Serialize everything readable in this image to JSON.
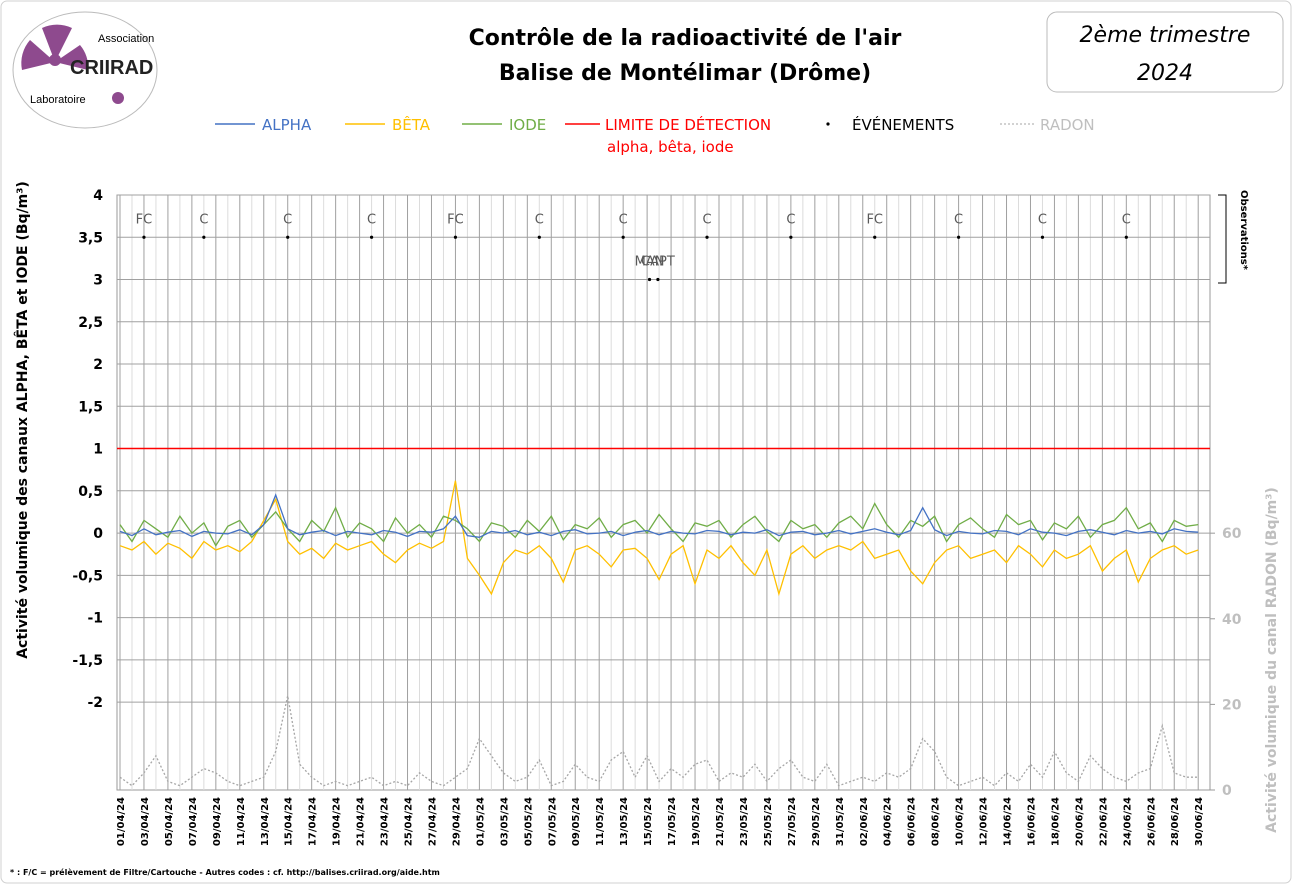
{
  "header": {
    "org_top": "Association",
    "org_name": "CRIIRAD",
    "org_bottom": "Laboratoire",
    "period_line1": "2ème trimestre",
    "period_line2": "2024"
  },
  "chart_data": {
    "type": "line",
    "title": "Contrôle de la radioactivité de l'air",
    "subtitle": "Balise de Montélimar (Drôme)",
    "ylabel": "Activité volumique des canaux ALPHA, BÊTA et IODE (Bq/m³)",
    "y2label": "Activité volumique du canal RADON (Bq/m³)",
    "observations_label": "Observations*",
    "footnote": "* : F/C = prélèvement de Filtre/Cartouche  - Autres codes : cf. http://balises.criirad.org/aide.htm",
    "categories": [
      "01/04/24",
      null,
      "03/04/24",
      null,
      "05/04/24",
      null,
      "07/04/24",
      null,
      "09/04/24",
      null,
      "11/04/24",
      null,
      "13/04/24",
      null,
      "15/04/24",
      null,
      "17/04/24",
      null,
      "19/04/24",
      null,
      "21/04/24",
      null,
      "23/04/24",
      null,
      "25/04/24",
      null,
      "27/04/24",
      null,
      "29/04/24",
      null,
      "01/05/24",
      null,
      "03/05/24",
      null,
      "05/05/24",
      null,
      "07/05/24",
      null,
      "09/05/24",
      null,
      "11/05/24",
      null,
      "13/05/24",
      null,
      "15/05/24",
      null,
      "17/05/24",
      null,
      "19/05/24",
      null,
      "21/05/24",
      null,
      "23/05/24",
      null,
      "25/05/24",
      null,
      "27/05/24",
      null,
      "29/05/24",
      null,
      "31/05/24",
      null,
      "02/06/24",
      null,
      "04/06/24",
      null,
      "06/06/24",
      null,
      "08/06/24",
      null,
      "10/06/24",
      null,
      "12/06/24",
      null,
      "14/06/24",
      null,
      "16/06/24",
      null,
      "18/06/24",
      null,
      "20/06/24",
      null,
      "22/06/24",
      null,
      "24/06/24",
      null,
      "26/06/24",
      null,
      "28/06/24",
      null,
      "30/06/24"
    ],
    "series": [
      {
        "name": "ALPHA",
        "color": "#4472c4",
        "values": [
          0.02,
          -0.03,
          0.05,
          -0.02,
          0.01,
          0.03,
          -0.04,
          0.02,
          0,
          -0.01,
          0.04,
          -0.02,
          0.1,
          0.45,
          0.05,
          -0.02,
          0.01,
          0.03,
          -0.03,
          0.02,
          0,
          -0.02,
          0.03,
          0.01,
          -0.04,
          0.02,
          0.01,
          0.05,
          0.2,
          -0.03,
          -0.05,
          0.02,
          0,
          0.03,
          -0.02,
          0.01,
          -0.03,
          0.02,
          0.04,
          -0.01,
          0,
          0.02,
          -0.03,
          0.01,
          0.03,
          -0.02,
          0.02,
          0,
          -0.01,
          0.03,
          0.02,
          -0.02,
          0.01,
          0,
          0.04,
          -0.03,
          0.01,
          0.02,
          -0.02,
          0,
          0.03,
          -0.01,
          0.02,
          0.05,
          0.01,
          -0.02,
          0.03,
          0.3,
          0.04,
          -0.03,
          0.02,
          0,
          -0.01,
          0.03,
          0.02,
          -0.02,
          0.05,
          0.01,
          0,
          -0.03,
          0.02,
          0.04,
          0.01,
          -0.02,
          0.03,
          0,
          0.02,
          -0.01,
          0.05,
          0.02,
          0.01
        ]
      },
      {
        "name": "BÊTA",
        "color": "#ffc000",
        "values": [
          -0.15,
          -0.2,
          -0.1,
          -0.25,
          -0.12,
          -0.18,
          -0.3,
          -0.1,
          -0.2,
          -0.15,
          -0.22,
          -0.1,
          0.15,
          0.4,
          -0.1,
          -0.25,
          -0.18,
          -0.3,
          -0.12,
          -0.2,
          -0.15,
          -0.1,
          -0.25,
          -0.35,
          -0.2,
          -0.12,
          -0.18,
          -0.1,
          0.62,
          -0.3,
          -0.5,
          -0.72,
          -0.35,
          -0.2,
          -0.25,
          -0.15,
          -0.3,
          -0.58,
          -0.2,
          -0.15,
          -0.25,
          -0.4,
          -0.2,
          -0.18,
          -0.3,
          -0.55,
          -0.25,
          -0.15,
          -0.6,
          -0.2,
          -0.3,
          -0.15,
          -0.35,
          -0.5,
          -0.2,
          -0.72,
          -0.25,
          -0.15,
          -0.3,
          -0.2,
          -0.15,
          -0.2,
          -0.1,
          -0.3,
          -0.25,
          -0.2,
          -0.45,
          -0.6,
          -0.35,
          -0.2,
          -0.15,
          -0.3,
          -0.25,
          -0.2,
          -0.35,
          -0.15,
          -0.25,
          -0.4,
          -0.2,
          -0.3,
          -0.25,
          -0.15,
          -0.45,
          -0.3,
          -0.2,
          -0.58,
          -0.3,
          -0.2,
          -0.15,
          -0.25,
          -0.2
        ]
      },
      {
        "name": "IODE",
        "color": "#70ad47",
        "values": [
          0.1,
          -0.1,
          0.15,
          0.05,
          -0.05,
          0.2,
          0,
          0.12,
          -0.15,
          0.08,
          0.15,
          -0.05,
          0.1,
          0.25,
          0.05,
          -0.1,
          0.15,
          0.02,
          0.3,
          -0.05,
          0.12,
          0.05,
          -0.1,
          0.18,
          0,
          0.1,
          -0.05,
          0.2,
          0.15,
          0.05,
          -0.1,
          0.12,
          0.08,
          -0.05,
          0.15,
          0.02,
          0.2,
          -0.08,
          0.1,
          0.05,
          0.18,
          -0.05,
          0.1,
          0.15,
          0,
          0.22,
          0.05,
          -0.1,
          0.12,
          0.08,
          0.15,
          -0.05,
          0.1,
          0.2,
          0.02,
          -0.1,
          0.15,
          0.05,
          0.1,
          -0.05,
          0.12,
          0.2,
          0.05,
          0.35,
          0.1,
          -0.05,
          0.15,
          0.08,
          0.2,
          -0.1,
          0.1,
          0.18,
          0.05,
          -0.05,
          0.22,
          0.1,
          0.15,
          -0.08,
          0.12,
          0.05,
          0.2,
          -0.05,
          0.1,
          0.15,
          0.3,
          0.05,
          0.12,
          -0.1,
          0.15,
          0.08,
          0.1
        ]
      },
      {
        "name": "RADON",
        "color": "#a6a6a6",
        "axis": "y2",
        "dashed": true,
        "values": [
          3,
          1,
          4,
          8,
          2,
          1,
          3,
          5,
          4,
          2,
          1,
          2,
          3,
          9,
          22,
          6,
          3,
          1,
          2,
          1,
          2,
          3,
          1,
          2,
          1,
          4,
          2,
          1,
          3,
          5,
          12,
          8,
          4,
          2,
          3,
          7,
          1,
          2,
          6,
          3,
          2,
          7,
          9,
          3,
          8,
          2,
          5,
          3,
          6,
          7,
          2,
          4,
          3,
          6,
          2,
          5,
          7,
          3,
          2,
          6,
          1,
          2,
          3,
          2,
          4,
          3,
          5,
          12,
          9,
          3,
          1,
          2,
          3,
          1,
          4,
          2,
          6,
          3,
          9,
          4,
          2,
          8,
          5,
          3,
          2,
          4,
          5,
          15,
          4,
          3,
          3
        ]
      }
    ],
    "limit": {
      "name": "LIMITE DE DÉTECTION",
      "note": "alpha, bêta, iode",
      "value": 1,
      "color": "#ff0000"
    },
    "events": {
      "name": "ÉVÉNEMENTS",
      "x": [
        2,
        7,
        14,
        21,
        28,
        35,
        42,
        44.2,
        44.9,
        49,
        56,
        63,
        70,
        77,
        84
      ],
      "values": [
        3.5,
        3.5,
        3.5,
        3.5,
        3.5,
        3.5,
        3.5,
        3,
        3,
        3.5,
        3.5,
        3.5,
        3.5,
        3.5,
        3.5
      ],
      "labels": [
        "FC",
        "C",
        "C",
        "C",
        "FC",
        "C",
        "C",
        "MAN",
        "CAPT",
        "C",
        "C",
        "FC",
        "C",
        "C",
        "C"
      ]
    },
    "ylim": [
      -3.04,
      4
    ],
    "yticks": [
      {
        "value": -2,
        "label": "-2"
      },
      {
        "value": -1.5,
        "label": "-1,5"
      },
      -1,
      {
        "value": -0.5,
        "label": "-0,5"
      },
      0,
      {
        "value": 0.5,
        "label": "0,5"
      },
      1,
      {
        "value": 1.5,
        "label": "1,5"
      },
      2,
      {
        "value": 2.5,
        "label": "2,5"
      },
      3,
      {
        "value": 3.5,
        "label": "3,5"
      },
      4
    ],
    "y2lim": [
      0,
      139
    ],
    "y2ticks": [
      0,
      20,
      40,
      60
    ],
    "grid": true
  }
}
